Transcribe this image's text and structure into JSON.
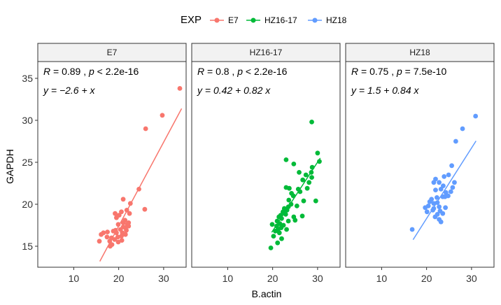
{
  "chart_data": {
    "type": "scatter",
    "xlabel": "B.actin",
    "ylabel": "GAPDH",
    "xlim": [
      2,
      35
    ],
    "ylim": [
      12.5,
      37
    ],
    "x_ticks": [
      10,
      20,
      30
    ],
    "y_ticks": [
      15,
      20,
      25,
      30,
      35
    ],
    "legend": {
      "title": "EXP",
      "position": "top"
    },
    "colors": {
      "E7": "#F8766D",
      "HZ16-17": "#00BA38",
      "HZ18": "#619CFF"
    },
    "panels": [
      {
        "name": "E7",
        "stat": {
          "R": "0.89",
          "p_op": "<",
          "p": "2.2e-16"
        },
        "equation": "y = −2.6 + x",
        "intercept": -2.6,
        "slope": 1.0,
        "line_x": [
          15.8,
          34.0
        ],
        "points": [
          [
            33.6,
            33.8
          ],
          [
            29.7,
            30.6
          ],
          [
            26.0,
            29.0
          ],
          [
            24.5,
            21.8
          ],
          [
            25.8,
            19.4
          ],
          [
            21.0,
            20.6
          ],
          [
            22.6,
            20.1
          ],
          [
            21.8,
            19.3
          ],
          [
            22.4,
            18.9
          ],
          [
            20.6,
            19.1
          ],
          [
            19.2,
            18.9
          ],
          [
            19.5,
            18.4
          ],
          [
            21.4,
            18.1
          ],
          [
            21.0,
            17.8
          ],
          [
            21.9,
            17.6
          ],
          [
            22.2,
            17.4
          ],
          [
            21.5,
            17.2
          ],
          [
            20.4,
            17.0
          ],
          [
            19.3,
            16.9
          ],
          [
            18.8,
            16.8
          ],
          [
            17.5,
            16.7
          ],
          [
            16.6,
            16.6
          ],
          [
            19.5,
            16.6
          ],
          [
            20.8,
            16.6
          ],
          [
            21.5,
            16.4
          ],
          [
            16.1,
            16.4
          ],
          [
            17.4,
            16.1
          ],
          [
            19.8,
            16.1
          ],
          [
            18.4,
            16.0
          ],
          [
            19.1,
            15.8
          ],
          [
            20.7,
            15.7
          ],
          [
            18.0,
            15.6
          ],
          [
            15.7,
            15.6
          ],
          [
            19.9,
            15.5
          ],
          [
            18.5,
            15.2
          ],
          [
            18.1,
            15.0
          ],
          [
            22.2,
            17.8
          ],
          [
            20.1,
            18.7
          ],
          [
            21.7,
            16.9
          ],
          [
            20.6,
            16.2
          ],
          [
            21.0,
            17.3
          ],
          [
            19.9,
            17.6
          ]
        ]
      },
      {
        "name": "HZ16-17",
        "stat": {
          "R": "0.8",
          "p_op": "<",
          "p": "2.2e-16"
        },
        "equation": "y = 0.42 + 0.82 x",
        "intercept": 0.42,
        "slope": 0.82,
        "line_x": [
          19.8,
          30.6
        ],
        "points": [
          [
            28.7,
            29.8
          ],
          [
            30.0,
            26.1
          ],
          [
            30.4,
            25.1
          ],
          [
            28.8,
            24.4
          ],
          [
            28.6,
            23.8
          ],
          [
            27.4,
            23.5
          ],
          [
            28.7,
            23.2
          ],
          [
            28.1,
            22.6
          ],
          [
            27.7,
            21.9
          ],
          [
            26.7,
            22.9
          ],
          [
            25.9,
            23.8
          ],
          [
            23.0,
            25.3
          ],
          [
            24.7,
            24.8
          ],
          [
            25.7,
            21.8
          ],
          [
            26.1,
            21.5
          ],
          [
            23.0,
            22.0
          ],
          [
            26.9,
            20.4
          ],
          [
            29.6,
            20.4
          ],
          [
            25.4,
            19.8
          ],
          [
            24.2,
            21.3
          ],
          [
            23.6,
            20.5
          ],
          [
            24.1,
            20.0
          ],
          [
            23.5,
            19.7
          ],
          [
            22.6,
            19.5
          ],
          [
            23.2,
            19.3
          ],
          [
            22.3,
            19.1
          ],
          [
            22.9,
            18.8
          ],
          [
            21.8,
            18.7
          ],
          [
            21.4,
            18.5
          ],
          [
            22.0,
            18.3
          ],
          [
            21.0,
            18.0
          ],
          [
            23.5,
            18.0
          ],
          [
            21.6,
            17.7
          ],
          [
            19.9,
            17.6
          ],
          [
            22.4,
            17.5
          ],
          [
            20.9,
            17.4
          ],
          [
            21.9,
            17.2
          ],
          [
            21.2,
            17.0
          ],
          [
            20.6,
            16.8
          ],
          [
            21.5,
            16.6
          ],
          [
            20.2,
            16.2
          ],
          [
            22.0,
            15.9
          ],
          [
            21.1,
            15.4
          ],
          [
            19.6,
            14.8
          ],
          [
            24.7,
            18.5
          ],
          [
            26.6,
            18.6
          ],
          [
            25.0,
            18.1
          ],
          [
            23.1,
            17.0
          ],
          [
            24.6,
            21.0
          ],
          [
            23.7,
            21.9
          ]
        ]
      },
      {
        "name": "HZ18",
        "stat": {
          "R": "0.75",
          "p_op": "=",
          "p": "7.5e-10"
        },
        "equation": "y = 1.5 + 0.84 x",
        "intercept": 1.5,
        "slope": 0.84,
        "line_x": [
          17.0,
          31.0
        ],
        "points": [
          [
            30.9,
            30.5
          ],
          [
            28.0,
            29.0
          ],
          [
            26.5,
            27.5
          ],
          [
            25.6,
            24.6
          ],
          [
            24.9,
            23.5
          ],
          [
            26.2,
            22.6
          ],
          [
            25.8,
            22.0
          ],
          [
            25.4,
            21.5
          ],
          [
            24.3,
            21.4
          ],
          [
            23.7,
            22.2
          ],
          [
            22.8,
            22.6
          ],
          [
            22.0,
            23.0
          ],
          [
            21.6,
            22.6
          ],
          [
            23.2,
            21.8
          ],
          [
            24.8,
            21.0
          ],
          [
            23.6,
            20.9
          ],
          [
            22.3,
            20.8
          ],
          [
            21.1,
            20.6
          ],
          [
            22.4,
            20.2
          ],
          [
            24.2,
            19.6
          ],
          [
            22.8,
            19.7
          ],
          [
            21.6,
            19.5
          ],
          [
            20.4,
            19.8
          ],
          [
            19.7,
            19.6
          ],
          [
            21.4,
            19.3
          ],
          [
            20.1,
            19.1
          ],
          [
            23.0,
            19.2
          ],
          [
            22.4,
            18.8
          ],
          [
            23.6,
            18.9
          ],
          [
            21.9,
            18.5
          ],
          [
            22.8,
            18.2
          ],
          [
            23.2,
            17.9
          ],
          [
            21.6,
            20.1
          ],
          [
            16.8,
            17.0
          ],
          [
            24.1,
            20.9
          ],
          [
            22.0,
            21.7
          ],
          [
            23.9,
            23.3
          ],
          [
            20.7,
            20.3
          ]
        ]
      }
    ]
  }
}
